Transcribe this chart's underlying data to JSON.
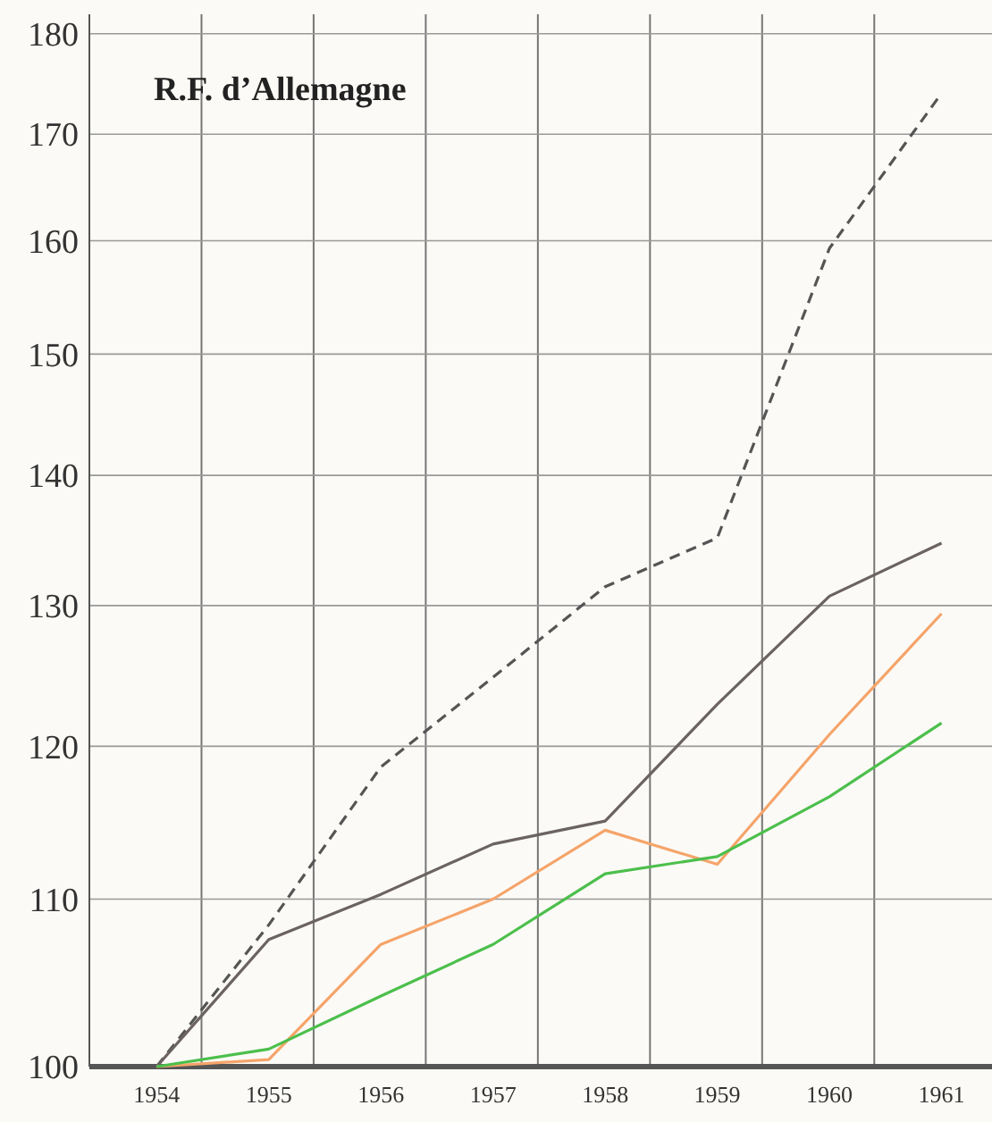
{
  "chart_data": {
    "type": "line",
    "title": "R.F. d’Allemagne",
    "log": "y",
    "grid": true,
    "x": [
      1954,
      1955,
      1956,
      1957,
      1958,
      1959,
      1960,
      1961
    ],
    "xlim": [
      1953.4,
      1961.45
    ],
    "xticks": [
      1954,
      1955,
      1956,
      1957,
      1958,
      1959,
      1960,
      1961,
      {
        "value": 1954.4,
        "label": null
      },
      {
        "value": 1955.4,
        "label": null
      },
      {
        "value": 1956.4,
        "label": null
      },
      {
        "value": 1957.4,
        "label": null
      },
      {
        "value": 1958.4,
        "label": null
      },
      {
        "value": 1959.4,
        "label": null
      },
      {
        "value": 1960.4,
        "label": null
      }
    ],
    "ylim": [
      100,
      182
    ],
    "yticks": [
      100,
      110,
      120,
      130,
      140,
      150,
      160,
      170,
      180
    ],
    "series": [
      {
        "color": "#555555",
        "line_style": "dashed",
        "values": [
          100,
          108.4,
          118.6,
          124.8,
          131.4,
          135.1,
          159.3,
          174
        ]
      },
      {
        "color": "#6b6262",
        "line_style": "solid",
        "values": [
          100,
          107.5,
          110.3,
          113.5,
          115,
          122.9,
          130.7,
          134.7
        ]
      },
      {
        "color": "#f5a46a",
        "line_style": "solid",
        "values": [
          100,
          100.4,
          107.2,
          110,
          114.4,
          112.2,
          120.8,
          129.4
        ]
      },
      {
        "color": "#4cbf4c",
        "line_style": "solid",
        "values": [
          100,
          101,
          104.1,
          107.2,
          111.6,
          112.7,
          116.6,
          121.6
        ]
      }
    ]
  }
}
